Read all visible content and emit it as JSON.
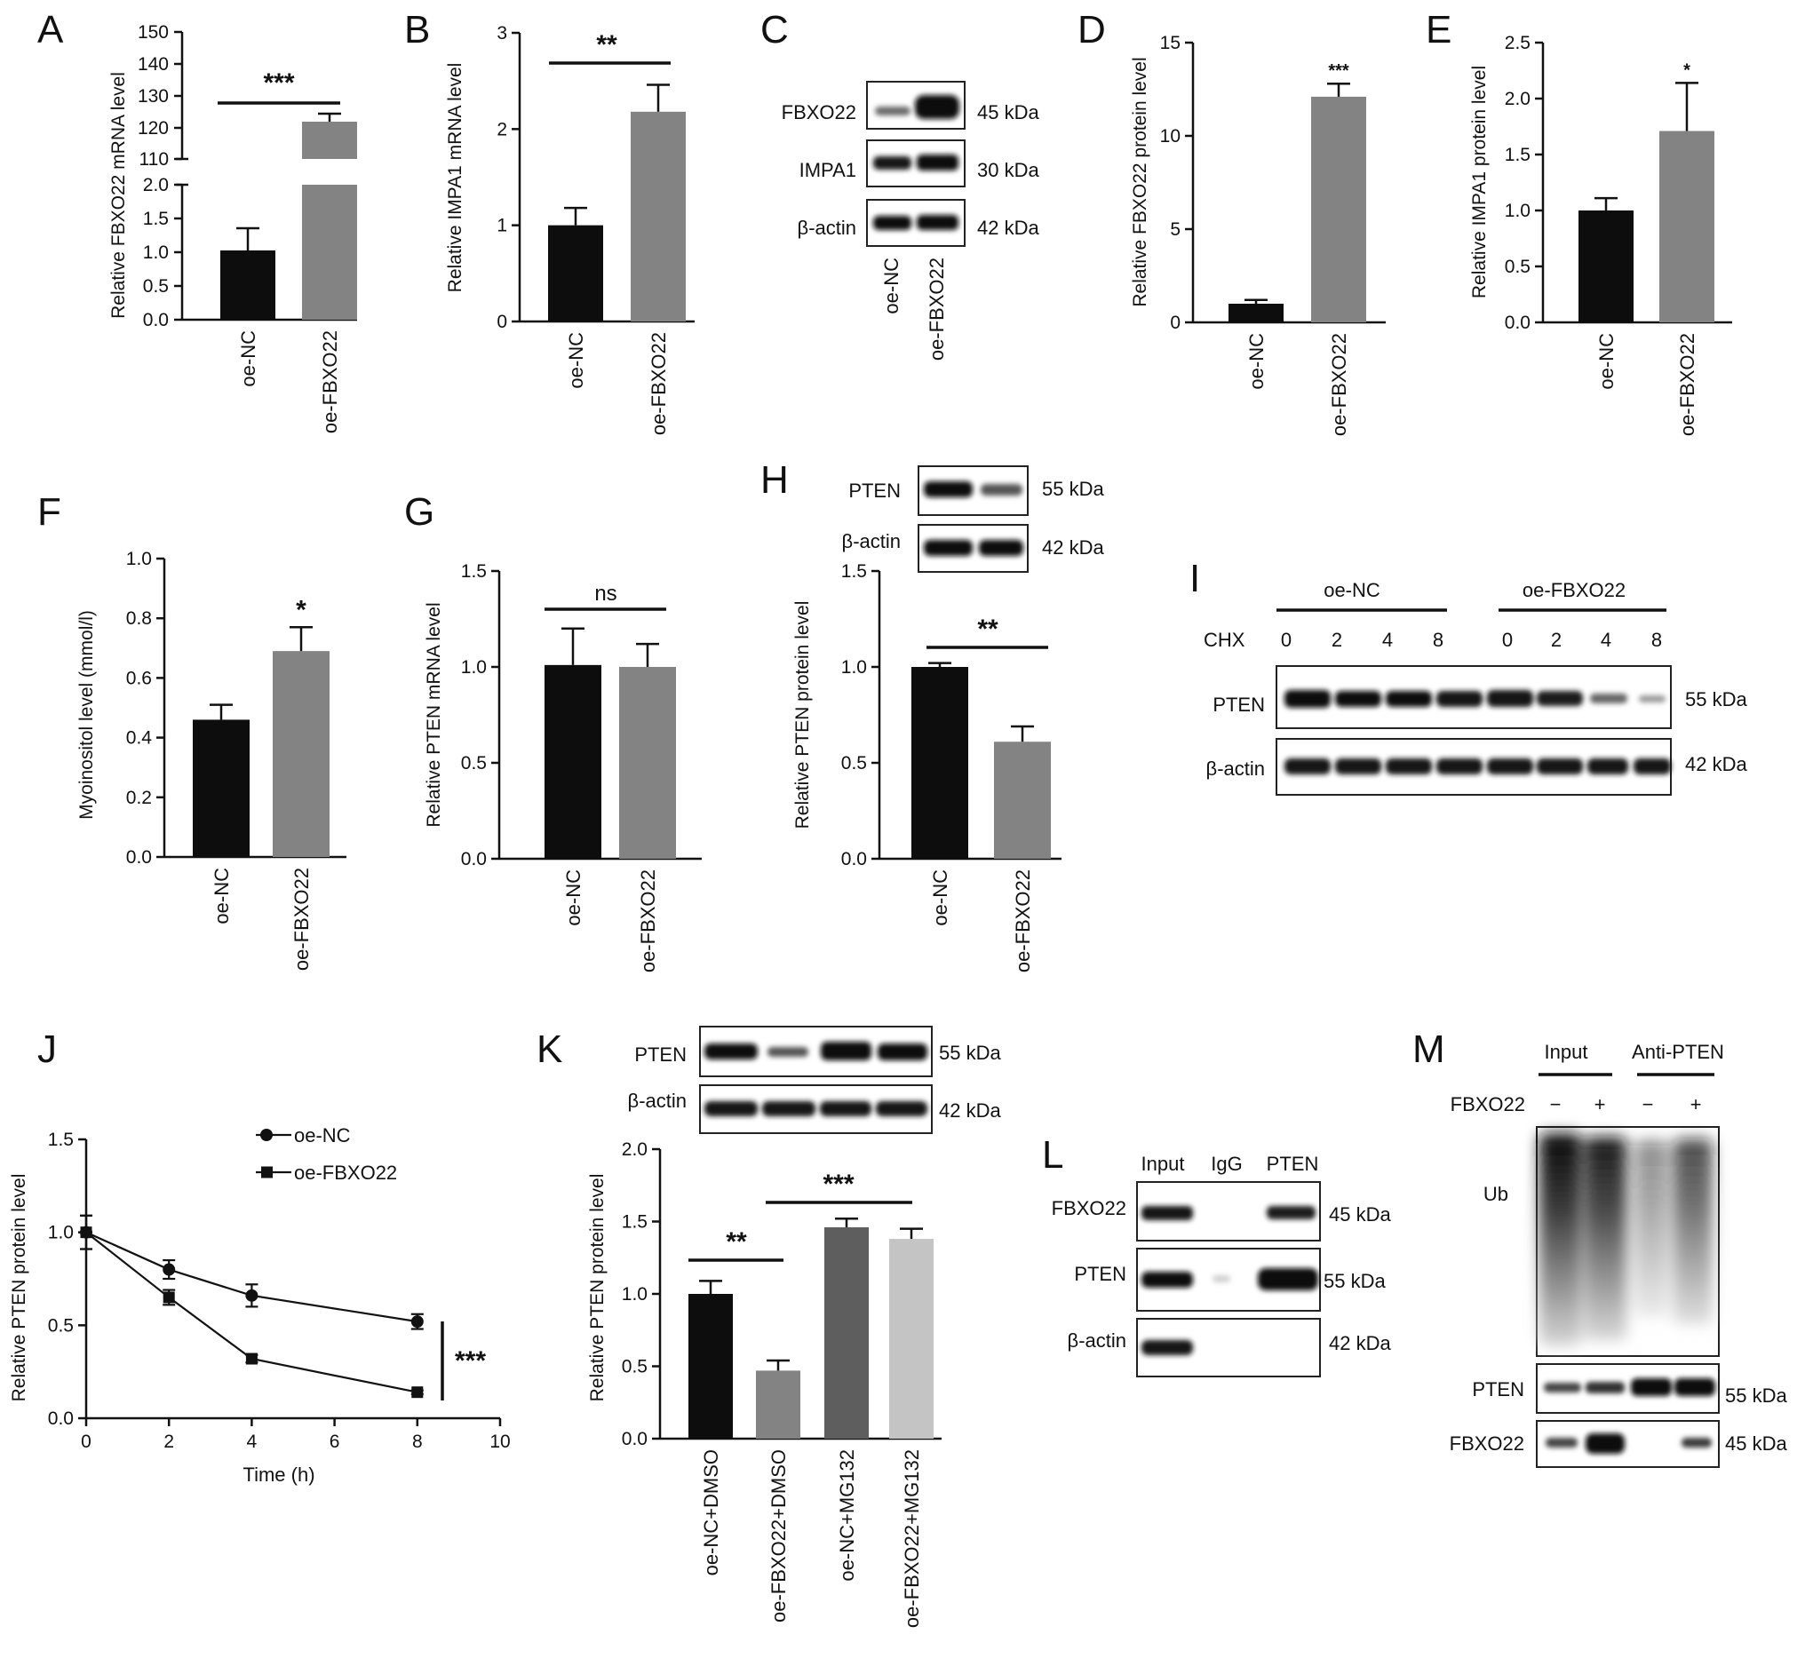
{
  "colors": {
    "black_bar": "#0d0d0d",
    "grey_bar": "#838383",
    "dark_grey_bar": "#5e5e5e",
    "light_grey_bar": "#c4c4c4",
    "axis": "#111111"
  },
  "panels": {
    "A": {
      "letter": "A"
    },
    "B": {
      "letter": "B"
    },
    "C": {
      "letter": "C",
      "rows": [
        {
          "label": "FBXO22",
          "kda": "45 kDa"
        },
        {
          "label": "IMPA1",
          "kda": "30 kDa"
        },
        {
          "label": "β-actin",
          "kda": "42 kDa"
        }
      ],
      "lanes": [
        "oe-NC",
        "oe-FBXO22"
      ]
    },
    "D": {
      "letter": "D"
    },
    "E": {
      "letter": "E"
    },
    "F": {
      "letter": "F"
    },
    "G": {
      "letter": "G"
    },
    "H": {
      "letter": "H",
      "rows": [
        {
          "label": "PTEN",
          "kda": "55 kDa"
        },
        {
          "label": "β-actin",
          "kda": "42 kDa"
        }
      ]
    },
    "I": {
      "letter": "I",
      "groups": [
        "oe-NC",
        "oe-FBXO22"
      ],
      "chx_label": "CHX",
      "chx_times": [
        "0",
        "2",
        "4",
        "8",
        "0",
        "2",
        "4",
        "8"
      ],
      "rows": [
        {
          "label": "PTEN",
          "kda": "55 kDa"
        },
        {
          "label": "β-actin",
          "kda": "42 kDa"
        }
      ]
    },
    "J": {
      "letter": "J"
    },
    "K": {
      "letter": "K",
      "rows": [
        {
          "label": "PTEN",
          "kda": "55 kDa"
        },
        {
          "label": "β-actin",
          "kda": "42 kDa"
        }
      ]
    },
    "L": {
      "letter": "L",
      "lanes": [
        "Input",
        "IgG",
        "PTEN"
      ],
      "rows": [
        {
          "label": "FBXO22",
          "kda": "45 kDa"
        },
        {
          "label": "PTEN",
          "kda": "55 kDa"
        },
        {
          "label": "β-actin",
          "kda": "42 kDa"
        }
      ]
    },
    "M": {
      "letter": "M",
      "groups": [
        "Input",
        "Anti-PTEN"
      ],
      "fbxo22_label": "FBXO22",
      "signs": [
        "−",
        "+",
        "−",
        "+"
      ],
      "ub_label": "Ub",
      "rows": [
        {
          "label": "PTEN",
          "kda": "55 kDa"
        },
        {
          "label": "FBXO22",
          "kda": "45 kDa"
        }
      ]
    }
  },
  "chart_data": [
    {
      "id": "A",
      "type": "bar",
      "ylabel": "Relative FBXO22 mRNA level",
      "categories": [
        "oe-NC",
        "oe-FBXO22"
      ],
      "values": [
        1.03,
        123
      ],
      "errors": [
        0.33,
        2.5
      ],
      "broken_axis": {
        "lower": [
          0,
          2.0
        ],
        "upper": [
          110,
          150
        ]
      },
      "lower_ticks": [
        "0.0",
        "0.5",
        "1.0",
        "1.5",
        "2.0"
      ],
      "upper_ticks": [
        "110",
        "120",
        "130",
        "140",
        "150"
      ],
      "significance": "***"
    },
    {
      "id": "B",
      "type": "bar",
      "ylabel": "Relative IMPA1 mRNA level",
      "categories": [
        "oe-NC",
        "oe-FBXO22"
      ],
      "values": [
        1.0,
        2.18
      ],
      "errors": [
        0.18,
        0.28
      ],
      "ylim": [
        0,
        3
      ],
      "ticks": [
        "0",
        "1",
        "2",
        "3"
      ],
      "significance": "**"
    },
    {
      "id": "D",
      "type": "bar",
      "ylabel": "Relative FBXO22 protein level",
      "categories": [
        "oe-NC",
        "oe-FBXO22"
      ],
      "values": [
        1.0,
        12.1
      ],
      "errors": [
        0.2,
        0.7
      ],
      "ylim": [
        0,
        15
      ],
      "ticks": [
        "0",
        "5",
        "10",
        "15"
      ],
      "significance": "***"
    },
    {
      "id": "E",
      "type": "bar",
      "ylabel": "Relative IMPA1 protein level",
      "categories": [
        "oe-NC",
        "oe-FBXO22"
      ],
      "values": [
        1.0,
        1.71
      ],
      "errors": [
        0.11,
        0.43
      ],
      "ylim": [
        0,
        2.5
      ],
      "ticks": [
        "0.0",
        "0.5",
        "1.0",
        "1.5",
        "2.0",
        "2.5"
      ],
      "significance": "*"
    },
    {
      "id": "F",
      "type": "bar",
      "ylabel": "Myoinositol level (mmol/l)",
      "categories": [
        "oe-NC",
        "oe-FBXO22"
      ],
      "values": [
        0.46,
        0.69
      ],
      "errors": [
        0.05,
        0.08
      ],
      "ylim": [
        0,
        1.0
      ],
      "ticks": [
        "0.0",
        "0.2",
        "0.4",
        "0.6",
        "0.8",
        "1.0"
      ],
      "significance": "*"
    },
    {
      "id": "G",
      "type": "bar",
      "ylabel": "Relative PTEN mRNA level",
      "categories": [
        "oe-NC",
        "oe-FBXO22"
      ],
      "values": [
        1.01,
        1.0
      ],
      "errors": [
        0.19,
        0.12
      ],
      "ylim": [
        0,
        1.5
      ],
      "ticks": [
        "0.0",
        "0.5",
        "1.0",
        "1.5"
      ],
      "significance": "ns"
    },
    {
      "id": "H",
      "type": "bar",
      "ylabel": "Relative PTEN protein level",
      "categories": [
        "oe-NC",
        "oe-FBXO22"
      ],
      "values": [
        1.0,
        0.61
      ],
      "errors": [
        0.02,
        0.08
      ],
      "ylim": [
        0,
        1.5
      ],
      "ticks": [
        "0.0",
        "0.5",
        "1.0",
        "1.5"
      ],
      "significance": "**"
    },
    {
      "id": "J",
      "type": "line",
      "xlabel": "Time (h)",
      "ylabel": "Relative PTEN protein level",
      "xlim": [
        0,
        10
      ],
      "ylim": [
        0,
        1.5
      ],
      "xticks": [
        "0",
        "2",
        "4",
        "6",
        "8",
        "10"
      ],
      "yticks": [
        "0.0",
        "0.5",
        "1.0",
        "1.5"
      ],
      "x": [
        0,
        2,
        4,
        8
      ],
      "series": [
        {
          "name": "oe-NC",
          "marker": "circle",
          "values": [
            1.0,
            0.8,
            0.66,
            0.52
          ],
          "errors": [
            0.09,
            0.05,
            0.06,
            0.04
          ]
        },
        {
          "name": "oe-FBXO22",
          "marker": "square",
          "values": [
            1.0,
            0.65,
            0.32,
            0.14
          ],
          "errors": [
            0.09,
            0.04,
            0.02,
            0.01
          ]
        }
      ],
      "significance": "***"
    },
    {
      "id": "K",
      "type": "bar",
      "ylabel": "Relative PTEN protein level",
      "categories": [
        "oe-NC+DMSO",
        "oe-FBXO22+DMSO",
        "oe-NC+MG132",
        "oe-FBXO22+MG132"
      ],
      "values": [
        1.0,
        0.47,
        1.46,
        1.38
      ],
      "errors": [
        0.09,
        0.07,
        0.06,
        0.07
      ],
      "ylim": [
        0,
        2.0
      ],
      "ticks": [
        "0.0",
        "0.5",
        "1.0",
        "1.5",
        "2.0"
      ],
      "significance": [
        "**",
        "***"
      ]
    }
  ]
}
